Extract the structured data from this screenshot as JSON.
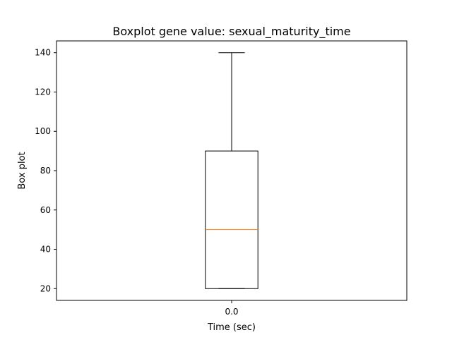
{
  "chart_data": {
    "type": "box",
    "title": "Boxplot gene value: sexual_maturity_time",
    "xlabel": "Time (sec)",
    "ylabel": "Box plot",
    "categories": [
      "0.0"
    ],
    "boxes": [
      {
        "category": "0.0",
        "whisker_low": 20,
        "q1": 20,
        "median": 50,
        "q3": 90,
        "whisker_high": 140
      }
    ],
    "ylim": [
      14,
      146
    ],
    "yticks": [
      20,
      40,
      60,
      80,
      100,
      120,
      140
    ],
    "grid": false,
    "colors": {
      "box": "#000000",
      "median": "#ff7f0e"
    }
  }
}
